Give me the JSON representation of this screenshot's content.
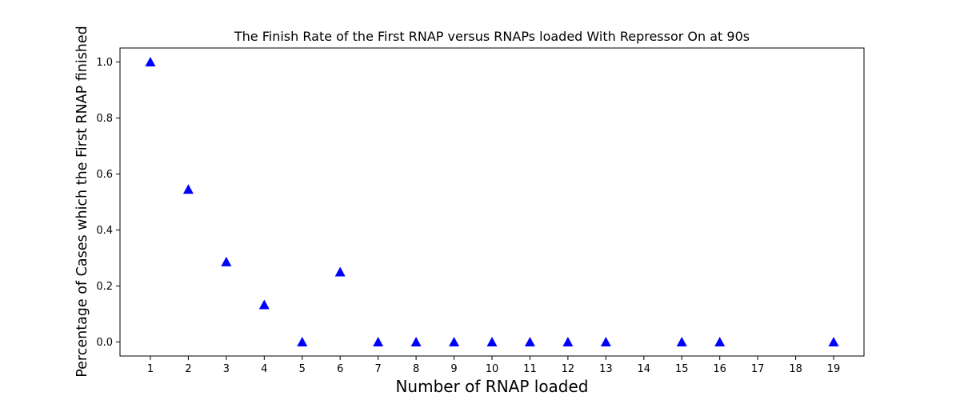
{
  "chart_data": {
    "type": "scatter",
    "title": "The Finish Rate of the First RNAP versus RNAPs loaded With Repressor On at 90s",
    "xlabel": "Number of RNAP loaded",
    "ylabel": "Percentage of Cases which the First RNAP finished",
    "x_ticks": [
      "1",
      "2",
      "3",
      "4",
      "5",
      "6",
      "7",
      "8",
      "9",
      "10",
      "11",
      "12",
      "13",
      "14",
      "15",
      "16",
      "17",
      "18",
      "19"
    ],
    "y_ticks": [
      "0.0",
      "0.2",
      "0.4",
      "0.6",
      "0.8",
      "1.0"
    ],
    "xlim": [
      0.2,
      19.8
    ],
    "ylim": [
      -0.05,
      1.05
    ],
    "grid": false,
    "marker": "triangle-up",
    "marker_color": "#0000ff",
    "x": [
      1,
      2,
      3,
      4,
      5,
      6,
      7,
      8,
      9,
      10,
      11,
      12,
      13,
      15,
      16,
      19
    ],
    "y": [
      1.0,
      0.545,
      0.286,
      0.133,
      0.0,
      0.25,
      0.0,
      0.0,
      0.0,
      0.0,
      0.0,
      0.0,
      0.0,
      0.0,
      0.0,
      0.0
    ]
  }
}
